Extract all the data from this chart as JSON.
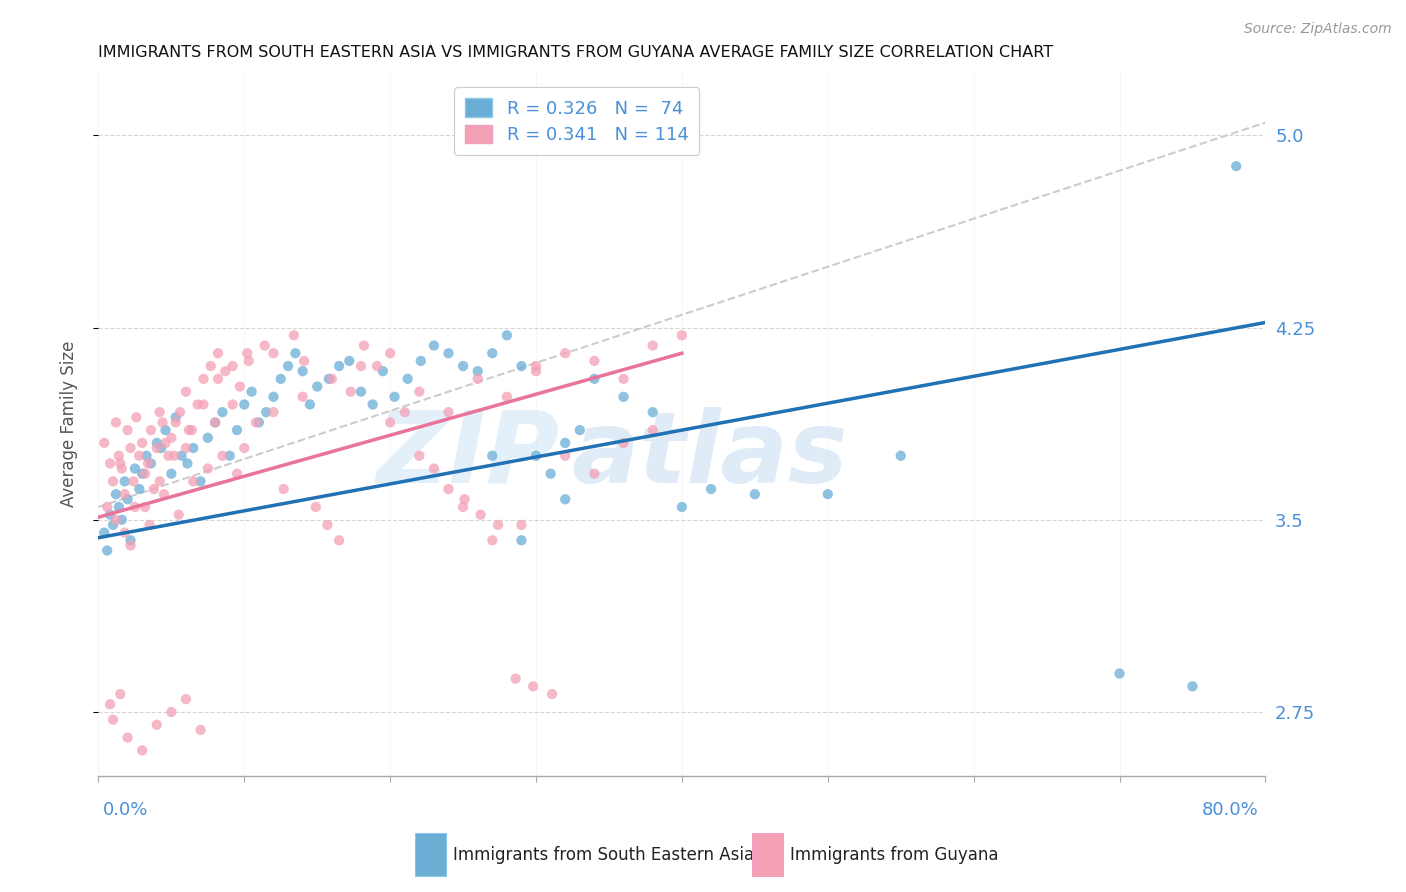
{
  "title": "IMMIGRANTS FROM SOUTH EASTERN ASIA VS IMMIGRANTS FROM GUYANA AVERAGE FAMILY SIZE CORRELATION CHART",
  "source": "Source: ZipAtlas.com",
  "ylabel": "Average Family Size",
  "xlim": [
    0.0,
    0.8
  ],
  "ylim": [
    2.5,
    5.25
  ],
  "xticks": [
    0.0,
    0.1,
    0.2,
    0.3,
    0.4,
    0.5,
    0.6,
    0.7,
    0.8
  ],
  "yticks": [
    2.75,
    3.5,
    4.25,
    5.0
  ],
  "color_blue": "#6aaed6",
  "color_pink": "#f4a0b5",
  "R_blue": 0.326,
  "N_blue": 74,
  "R_pink": 0.341,
  "N_pink": 114,
  "legend_label_blue": "Immigrants from South Eastern Asia",
  "legend_label_pink": "Immigrants from Guyana",
  "watermark_zip": "ZIP",
  "watermark_atlas": "atlas",
  "blue_trendline": [
    [
      0.0,
      3.43
    ],
    [
      0.8,
      4.27
    ]
  ],
  "pink_trendline": [
    [
      0.0,
      3.51
    ],
    [
      0.4,
      4.15
    ]
  ],
  "dashed_trendline": [
    [
      0.0,
      3.55
    ],
    [
      0.8,
      5.05
    ]
  ],
  "blue_scatter_x": [
    0.004,
    0.006,
    0.008,
    0.01,
    0.012,
    0.014,
    0.016,
    0.018,
    0.02,
    0.022,
    0.025,
    0.028,
    0.03,
    0.033,
    0.036,
    0.04,
    0.043,
    0.046,
    0.05,
    0.053,
    0.057,
    0.061,
    0.065,
    0.07,
    0.075,
    0.08,
    0.085,
    0.09,
    0.095,
    0.1,
    0.105,
    0.11,
    0.115,
    0.12,
    0.125,
    0.13,
    0.135,
    0.14,
    0.145,
    0.15,
    0.158,
    0.165,
    0.172,
    0.18,
    0.188,
    0.195,
    0.203,
    0.212,
    0.221,
    0.23,
    0.24,
    0.25,
    0.26,
    0.27,
    0.28,
    0.29,
    0.3,
    0.31,
    0.32,
    0.33,
    0.34,
    0.36,
    0.38,
    0.4,
    0.42,
    0.45,
    0.5,
    0.55,
    0.7,
    0.75,
    0.78,
    0.27,
    0.32,
    0.29
  ],
  "blue_scatter_y": [
    3.45,
    3.38,
    3.52,
    3.48,
    3.6,
    3.55,
    3.5,
    3.65,
    3.58,
    3.42,
    3.7,
    3.62,
    3.68,
    3.75,
    3.72,
    3.8,
    3.78,
    3.85,
    3.68,
    3.9,
    3.75,
    3.72,
    3.78,
    3.65,
    3.82,
    3.88,
    3.92,
    3.75,
    3.85,
    3.95,
    4.0,
    3.88,
    3.92,
    3.98,
    4.05,
    4.1,
    4.15,
    4.08,
    3.95,
    4.02,
    4.05,
    4.1,
    4.12,
    4.0,
    3.95,
    4.08,
    3.98,
    4.05,
    4.12,
    4.18,
    4.15,
    4.1,
    4.08,
    4.15,
    4.22,
    4.1,
    3.75,
    3.68,
    3.8,
    3.85,
    4.05,
    3.98,
    3.92,
    3.55,
    3.62,
    3.6,
    3.6,
    3.75,
    2.9,
    2.85,
    4.88,
    3.75,
    3.58,
    3.42
  ],
  "pink_scatter_x": [
    0.004,
    0.006,
    0.008,
    0.01,
    0.012,
    0.014,
    0.016,
    0.018,
    0.02,
    0.022,
    0.024,
    0.026,
    0.028,
    0.03,
    0.032,
    0.034,
    0.036,
    0.038,
    0.04,
    0.042,
    0.044,
    0.046,
    0.048,
    0.05,
    0.053,
    0.056,
    0.06,
    0.064,
    0.068,
    0.072,
    0.077,
    0.082,
    0.087,
    0.092,
    0.097,
    0.103,
    0.108,
    0.114,
    0.12,
    0.127,
    0.134,
    0.141,
    0.149,
    0.157,
    0.165,
    0.173,
    0.182,
    0.191,
    0.2,
    0.21,
    0.22,
    0.23,
    0.24,
    0.251,
    0.262,
    0.274,
    0.286,
    0.298,
    0.311,
    0.012,
    0.018,
    0.025,
    0.035,
    0.045,
    0.055,
    0.065,
    0.075,
    0.085,
    0.095,
    0.015,
    0.022,
    0.032,
    0.042,
    0.052,
    0.062,
    0.072,
    0.082,
    0.092,
    0.102,
    0.06,
    0.08,
    0.1,
    0.12,
    0.14,
    0.16,
    0.18,
    0.2,
    0.22,
    0.24,
    0.26,
    0.28,
    0.3,
    0.32,
    0.34,
    0.36,
    0.38,
    0.4,
    0.3,
    0.32,
    0.34,
    0.36,
    0.38,
    0.25,
    0.27,
    0.29,
    0.01,
    0.008,
    0.015,
    0.02,
    0.03,
    0.04,
    0.05,
    0.06,
    0.07
  ],
  "pink_scatter_y": [
    3.8,
    3.55,
    3.72,
    3.65,
    3.88,
    3.75,
    3.7,
    3.6,
    3.85,
    3.78,
    3.65,
    3.9,
    3.75,
    3.8,
    3.68,
    3.72,
    3.85,
    3.62,
    3.78,
    3.92,
    3.88,
    3.8,
    3.75,
    3.82,
    3.88,
    3.92,
    3.78,
    3.85,
    3.95,
    4.05,
    4.1,
    4.15,
    4.08,
    3.95,
    4.02,
    4.12,
    3.88,
    4.18,
    4.15,
    3.62,
    4.22,
    4.12,
    3.55,
    3.48,
    3.42,
    4.0,
    4.18,
    4.1,
    3.88,
    3.92,
    3.75,
    3.7,
    3.62,
    3.58,
    3.52,
    3.48,
    2.88,
    2.85,
    2.82,
    3.5,
    3.45,
    3.55,
    3.48,
    3.6,
    3.52,
    3.65,
    3.7,
    3.75,
    3.68,
    3.72,
    3.4,
    3.55,
    3.65,
    3.75,
    3.85,
    3.95,
    4.05,
    4.1,
    4.15,
    4.0,
    3.88,
    3.78,
    3.92,
    3.98,
    4.05,
    4.1,
    4.15,
    4.0,
    3.92,
    4.05,
    3.98,
    4.08,
    4.15,
    4.12,
    4.05,
    4.18,
    4.22,
    4.1,
    3.75,
    3.68,
    3.8,
    3.85,
    3.55,
    3.42,
    3.48,
    2.72,
    2.78,
    2.82,
    2.65,
    2.6,
    2.7,
    2.75,
    2.8,
    2.68
  ]
}
